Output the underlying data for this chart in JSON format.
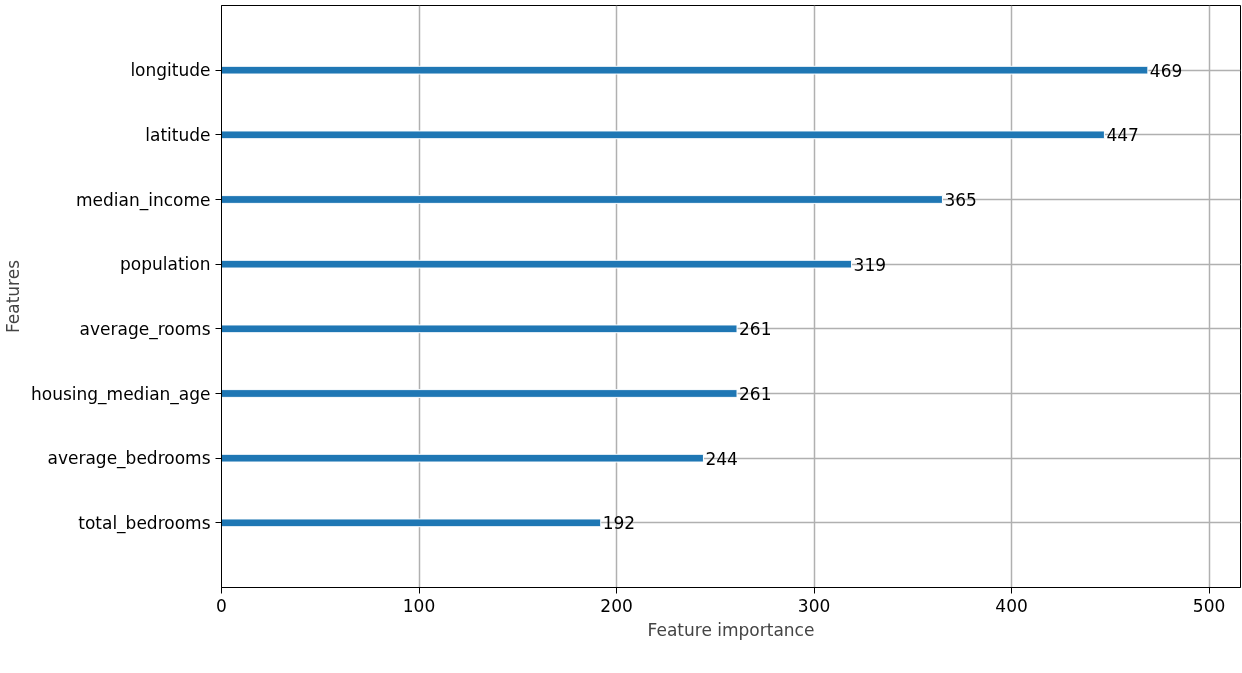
{
  "chart_data": {
    "type": "bar",
    "orientation": "horizontal",
    "xlabel": "Feature importance",
    "ylabel": "Features",
    "categories": [
      "longitude",
      "latitude",
      "median_income",
      "population",
      "average_rooms",
      "housing_median_age",
      "average_bedrooms",
      "total_bedrooms"
    ],
    "values": [
      469,
      447,
      365,
      319,
      261,
      261,
      244,
      192
    ],
    "color": "#1f77b4",
    "xlim": [
      0,
      515.9
    ],
    "xticks": [
      0,
      100,
      200,
      300,
      400,
      500
    ],
    "grid": true,
    "data_labels": true
  }
}
